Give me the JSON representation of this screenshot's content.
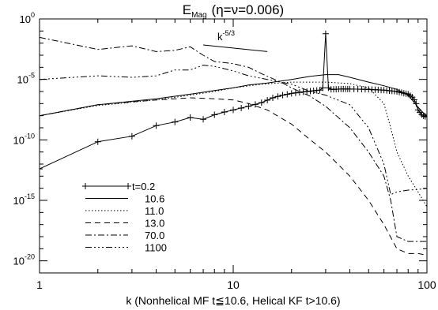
{
  "chart_data": {
    "type": "line",
    "title": {
      "main": "E",
      "sub": "Mag",
      "paren": "(η=ν=0.006)"
    },
    "xlabel": "k (Nonhelical MF t≦10.6, Helical KF t>10.6)",
    "ylabel": "",
    "x_scale": "log",
    "y_scale": "log",
    "xlim": [
      1,
      100
    ],
    "ylim": [
      1e-21,
      1
    ],
    "x_ticks": [
      {
        "value": 1,
        "label": "1"
      },
      {
        "value": 10,
        "label": "10"
      },
      {
        "value": 100,
        "label": "100"
      }
    ],
    "y_ticks": [
      {
        "value": 1,
        "label": "10",
        "exp": "0"
      },
      {
        "value": 1e-05,
        "label": "10",
        "exp": "-5"
      },
      {
        "value": 1e-10,
        "label": "10",
        "exp": "-10"
      },
      {
        "value": 1e-15,
        "label": "10",
        "exp": "-15"
      },
      {
        "value": 1e-20,
        "label": "10",
        "exp": "-20"
      }
    ],
    "reference_line": {
      "label": "k",
      "label_exp": "-5/3",
      "x": [
        7,
        15
      ],
      "y": [
        0.007,
        0.00199
      ]
    },
    "legend_position": "bottom-left",
    "series": [
      {
        "name": "t=0.2",
        "style": "solid-plus",
        "points": [
          [
            1,
            4e-13
          ],
          [
            2,
            7e-11
          ],
          [
            3,
            2e-10
          ],
          [
            4,
            1.5e-09
          ],
          [
            5,
            3e-09
          ],
          [
            6,
            7e-09
          ],
          [
            7,
            5e-09
          ],
          [
            8,
            1.2e-08
          ],
          [
            9,
            2e-08
          ],
          [
            10,
            3e-08
          ],
          [
            12,
            6e-08
          ],
          [
            14,
            1.2e-07
          ],
          [
            16,
            3e-07
          ],
          [
            18,
            5e-07
          ],
          [
            20,
            7e-07
          ],
          [
            24,
            1e-06
          ],
          [
            28,
            1.3e-06
          ],
          [
            29,
            2e-06
          ],
          [
            30,
            0.06
          ],
          [
            31,
            2e-06
          ],
          [
            32,
            1.5e-06
          ],
          [
            36,
            1.6e-06
          ],
          [
            40,
            1.6e-06
          ],
          [
            50,
            1.5e-06
          ],
          [
            60,
            1.3e-06
          ],
          [
            70,
            1e-06
          ],
          [
            80,
            6e-07
          ],
          [
            85,
            3e-07
          ],
          [
            88,
            1e-07
          ],
          [
            90,
            3e-08
          ],
          [
            95,
            1e-08
          ],
          [
            100,
            8e-09
          ]
        ],
        "marker_x": [
          1,
          2,
          3,
          4,
          5,
          6,
          7,
          8,
          9,
          10,
          11,
          12,
          13,
          14,
          15,
          16,
          17,
          18,
          19,
          20,
          21,
          22,
          23,
          24,
          25,
          26,
          27,
          28,
          29,
          30,
          31,
          32,
          33,
          34,
          35,
          36,
          37,
          38,
          39,
          40,
          42,
          44,
          46,
          48,
          50,
          52,
          54,
          56,
          58,
          60,
          62,
          64,
          66,
          68,
          70,
          72,
          74,
          76,
          78,
          80,
          82,
          84,
          86,
          88,
          90,
          92,
          94,
          96,
          98,
          100
        ]
      },
      {
        "name": "10.6",
        "style": "solid",
        "points": [
          [
            1,
            1e-08
          ],
          [
            2,
            8e-08
          ],
          [
            4,
            2.5e-07
          ],
          [
            6,
            6e-07
          ],
          [
            8,
            1.2e-06
          ],
          [
            10,
            2e-06
          ],
          [
            12,
            3.5e-06
          ],
          [
            15,
            5e-06
          ],
          [
            20,
            1e-05
          ],
          [
            25,
            1.8e-05
          ],
          [
            30,
            2.5e-05
          ],
          [
            35,
            2.5e-05
          ],
          [
            40,
            1.5e-05
          ],
          [
            50,
            6e-06
          ],
          [
            60,
            3e-06
          ],
          [
            70,
            1.5e-06
          ],
          [
            80,
            5e-07
          ],
          [
            90,
            5e-08
          ],
          [
            95,
            2e-08
          ],
          [
            100,
            1e-08
          ]
        ]
      },
      {
        "name": "11.0",
        "style": "dotted",
        "points": [
          [
            1,
            1e-08
          ],
          [
            2,
            7e-08
          ],
          [
            4,
            2e-07
          ],
          [
            6,
            5e-07
          ],
          [
            8,
            1e-06
          ],
          [
            10,
            2e-06
          ],
          [
            14,
            4e-06
          ],
          [
            20,
            6e-06
          ],
          [
            30,
            6e-06
          ],
          [
            40,
            4.5e-06
          ],
          [
            50,
            2e-06
          ],
          [
            60,
            1e-07
          ],
          [
            65,
            1e-09
          ],
          [
            70,
            1e-11
          ],
          [
            80,
            1e-13
          ],
          [
            90,
            5e-15
          ],
          [
            100,
            3e-16
          ]
        ]
      },
      {
        "name": "13.0",
        "style": "dashed",
        "points": [
          [
            1,
            1e-08
          ],
          [
            2,
            8e-08
          ],
          [
            4,
            2e-07
          ],
          [
            6,
            3e-07
          ],
          [
            8,
            2.5e-07
          ],
          [
            10,
            2e-07
          ],
          [
            12,
            1e-07
          ],
          [
            15,
            3e-08
          ],
          [
            20,
            2e-09
          ],
          [
            25,
            1e-10
          ],
          [
            30,
            1e-11
          ],
          [
            40,
            1e-13
          ],
          [
            50,
            1e-15
          ],
          [
            60,
            1e-17
          ],
          [
            70,
            1e-19
          ],
          [
            80,
            4e-20
          ],
          [
            90,
            4e-20
          ],
          [
            100,
            3e-20
          ]
        ]
      },
      {
        "name": "70.0",
        "style": "dashdot",
        "points": [
          [
            1,
            0.03
          ],
          [
            2,
            0.003
          ],
          [
            3,
            0.006
          ],
          [
            4,
            0.002
          ],
          [
            5,
            0.0025
          ],
          [
            6,
            0.005
          ],
          [
            7,
            0.001
          ],
          [
            8,
            0.0003
          ],
          [
            10,
            0.0002
          ],
          [
            12,
            0.0001
          ],
          [
            14,
            3e-05
          ],
          [
            18,
            5e-06
          ],
          [
            20,
            2e-06
          ],
          [
            25,
            4e-07
          ],
          [
            30,
            6e-08
          ],
          [
            40,
            1e-09
          ],
          [
            50,
            1e-11
          ],
          [
            60,
            1e-13
          ],
          [
            65,
            1e-15
          ],
          [
            70,
            1e-18
          ],
          [
            80,
            4e-19
          ],
          [
            100,
            4e-19
          ]
        ]
      },
      {
        "name": "1100",
        "style": "dashdotdotdot",
        "points": [
          [
            1,
            1e-05
          ],
          [
            2,
            2e-05
          ],
          [
            3,
            1.5e-05
          ],
          [
            4,
            2e-05
          ],
          [
            5,
            6e-05
          ],
          [
            6,
            6e-05
          ],
          [
            7,
            0.00015
          ],
          [
            8,
            0.00012
          ],
          [
            10,
            5e-05
          ],
          [
            12,
            2e-05
          ],
          [
            15,
            1e-05
          ],
          [
            20,
            4e-06
          ],
          [
            25,
            1e-06
          ],
          [
            30,
            5e-07
          ],
          [
            40,
            8e-08
          ],
          [
            50,
            1e-09
          ],
          [
            60,
            1e-12
          ],
          [
            65,
            3e-15
          ],
          [
            70,
            5e-15
          ],
          [
            80,
            7e-15
          ],
          [
            90,
            8e-15
          ],
          [
            100,
            1e-14
          ]
        ]
      }
    ]
  }
}
